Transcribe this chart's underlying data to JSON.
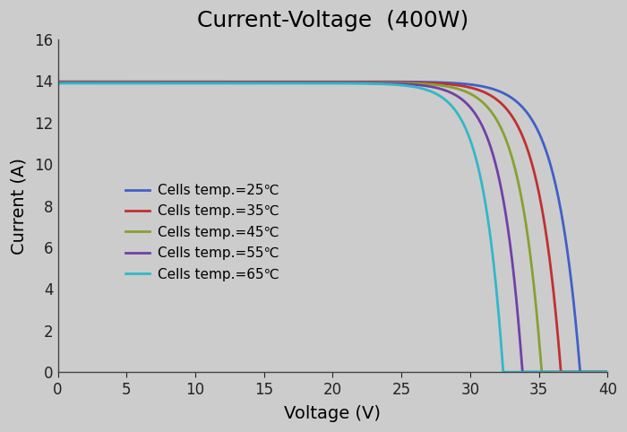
{
  "title": "Current-Voltage  (400W)",
  "xlabel": "Voltage (V)",
  "ylabel": "Current (A)",
  "xlim": [
    0,
    40
  ],
  "ylim": [
    0,
    16
  ],
  "xticks": [
    0,
    5,
    10,
    15,
    20,
    25,
    30,
    35,
    40
  ],
  "yticks": [
    0,
    2,
    4,
    6,
    8,
    10,
    12,
    14,
    16
  ],
  "background_color": "#cccccc",
  "plot_bg_color": "#cccccc",
  "curves": [
    {
      "temp": 25,
      "Isc": 13.97,
      "Voc": 38.0,
      "n_factor": 22,
      "color": "#4060c8",
      "label": "Cells temp.=25℃"
    },
    {
      "temp": 35,
      "Isc": 13.95,
      "Voc": 36.6,
      "n_factor": 22,
      "color": "#c03030",
      "label": "Cells temp.=35℃"
    },
    {
      "temp": 45,
      "Isc": 13.93,
      "Voc": 35.2,
      "n_factor": 22,
      "color": "#88a030",
      "label": "Cells temp.=45℃"
    },
    {
      "temp": 55,
      "Isc": 13.91,
      "Voc": 33.8,
      "n_factor": 22,
      "color": "#7040a8",
      "label": "Cells temp.=55℃"
    },
    {
      "temp": 65,
      "Isc": 13.89,
      "Voc": 32.4,
      "n_factor": 22,
      "color": "#30b8c8",
      "label": "Cells temp.=65℃"
    }
  ],
  "title_fontsize": 18,
  "label_fontsize": 14,
  "tick_fontsize": 12,
  "legend_fontsize": 11,
  "line_width": 2.0
}
